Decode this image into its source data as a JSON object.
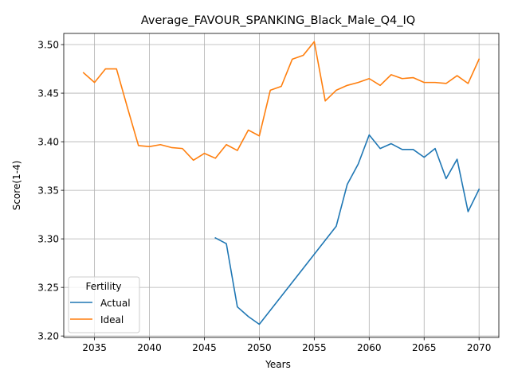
{
  "chart_data": {
    "type": "line",
    "title": "Average_FAVOUR_SPANKING_Black_Male_Q4_IQ",
    "xlabel": "Years",
    "ylabel": "Score(1-4)",
    "xlim": [
      2032.2,
      2071.8
    ],
    "ylim": [
      3.1985,
      3.5115
    ],
    "xticks": [
      2035,
      2040,
      2045,
      2050,
      2055,
      2060,
      2065,
      2070
    ],
    "yticks": [
      3.2,
      3.25,
      3.3,
      3.35,
      3.4,
      3.45,
      3.5
    ],
    "ytick_labels": [
      "3.20",
      "3.25",
      "3.30",
      "3.35",
      "3.40",
      "3.45",
      "3.50"
    ],
    "grid": true,
    "legend": {
      "title": "Fertility",
      "placement": "lower-left"
    },
    "series": [
      {
        "name": "Actual",
        "color": "#1f77b4",
        "x": [
          2046,
          2047,
          2048,
          2049,
          2050,
          2057,
          2058,
          2059,
          2060,
          2061,
          2062,
          2063,
          2064,
          2065,
          2066,
          2067,
          2068,
          2069,
          2070
        ],
        "y": [
          3.301,
          3.295,
          3.23,
          3.22,
          3.212,
          3.313,
          3.356,
          3.377,
          3.407,
          3.393,
          3.398,
          3.392,
          3.392,
          3.384,
          3.393,
          3.362,
          3.382,
          3.328,
          3.351
        ]
      },
      {
        "name": "Ideal",
        "color": "#ff7f0e",
        "x": [
          2034,
          2035,
          2036,
          2037,
          2038,
          2039,
          2040,
          2041,
          2042,
          2043,
          2044,
          2045,
          2046,
          2047,
          2048,
          2049,
          2050,
          2051,
          2052,
          2053,
          2054,
          2055,
          2056,
          2057,
          2058,
          2059,
          2060,
          2061,
          2062,
          2063,
          2064,
          2065,
          2066,
          2067,
          2068,
          2069,
          2070
        ],
        "y": [
          3.471,
          3.461,
          3.475,
          3.475,
          3.435,
          3.396,
          3.395,
          3.397,
          3.394,
          3.393,
          3.381,
          3.388,
          3.383,
          3.397,
          3.391,
          3.412,
          3.406,
          3.453,
          3.457,
          3.485,
          3.489,
          3.503,
          3.442,
          3.453,
          3.458,
          3.461,
          3.465,
          3.458,
          3.469,
          3.465,
          3.466,
          3.461,
          3.461,
          3.46,
          3.468,
          3.46,
          3.485
        ]
      }
    ]
  }
}
